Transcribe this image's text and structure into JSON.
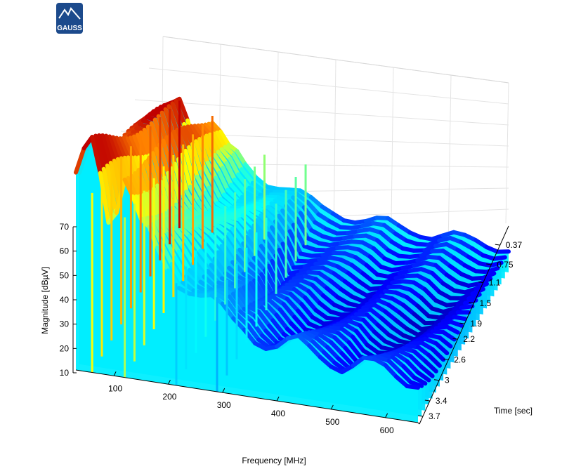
{
  "logo": {
    "text": "GAUSS",
    "color": "#1c4a8c"
  },
  "chart_data": {
    "type": "surface",
    "title": "",
    "xlabel": "Frequency [MHz]",
    "ylabel": "Time [sec]",
    "zlabel": "Magnitude [dBµV]",
    "xlim": [
      30,
      660
    ],
    "ylim": [
      0,
      3.85
    ],
    "zlim": [
      10,
      70
    ],
    "x_ticks": [
      "100",
      "200",
      "300",
      "400",
      "500",
      "600"
    ],
    "y_ticks": [
      "0.37",
      "0.75",
      "1.1",
      "1.5",
      "1.9",
      "2.2",
      "2.6",
      "3",
      "3.4",
      "3.7"
    ],
    "z_ticks": [
      "10",
      "20",
      "30",
      "40",
      "50",
      "60",
      "70"
    ],
    "colormap": "jet",
    "grid": true,
    "spectrum_envelope": {
      "x": [
        30,
        45,
        60,
        75,
        90,
        105,
        120,
        135,
        150,
        165,
        180,
        200,
        220,
        240,
        260,
        280,
        300,
        320,
        340,
        360,
        380,
        400,
        420,
        440,
        460,
        480,
        500,
        520,
        540,
        560,
        580,
        600,
        620,
        640,
        660
      ],
      "y": [
        62,
        66,
        68,
        60,
        50,
        55,
        64,
        58,
        50,
        47,
        43,
        40,
        38,
        37,
        35,
        33,
        30,
        28,
        28,
        27,
        26,
        25,
        25,
        25,
        24,
        24,
        24,
        23,
        23,
        23,
        22,
        22,
        22,
        22,
        22
      ]
    },
    "peaks": [
      {
        "x": 60,
        "y": 70
      },
      {
        "x": 120,
        "y": 65
      },
      {
        "x": 215,
        "y": 50
      },
      {
        "x": 290,
        "y": 48
      }
    ]
  }
}
